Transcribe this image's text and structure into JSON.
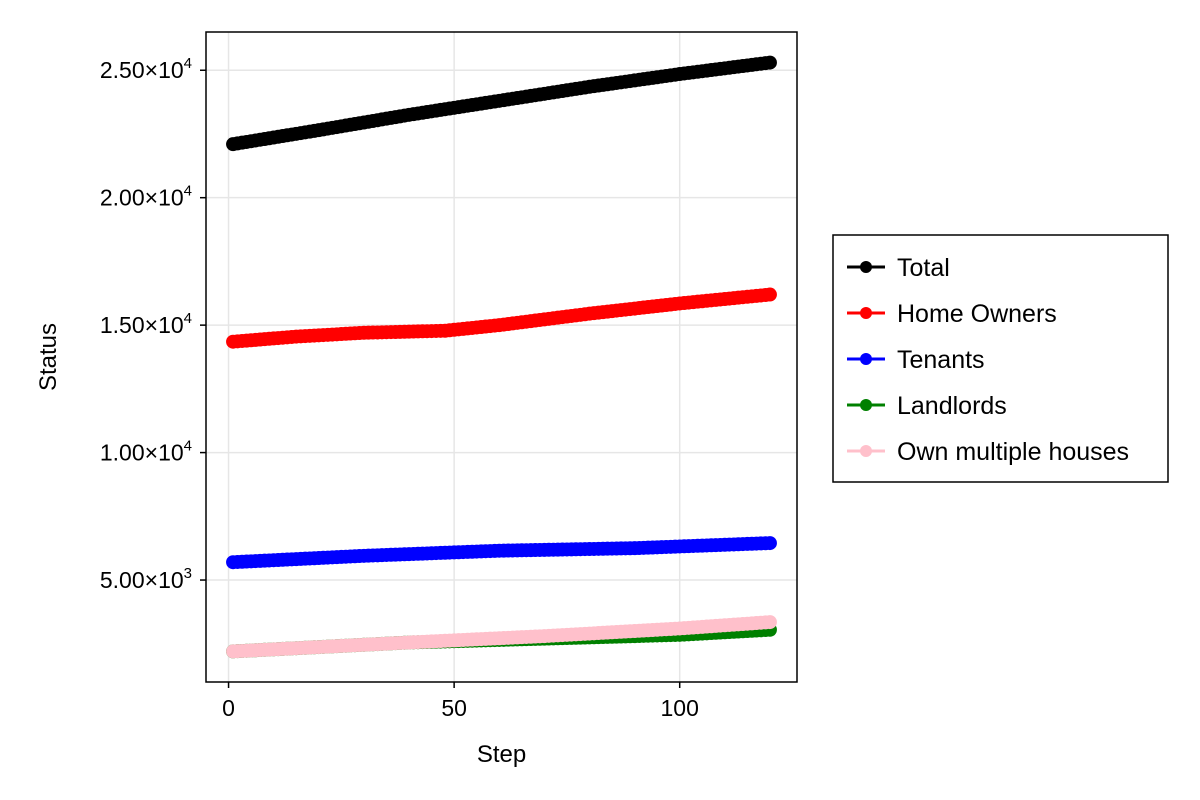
{
  "chart_data": {
    "type": "scatter",
    "xlabel": "Step",
    "ylabel": "Status",
    "xlim": [
      -5,
      126
    ],
    "ylim": [
      1000,
      26500
    ],
    "x_ticks": [
      0,
      50,
      100
    ],
    "x_tick_labels": [
      "0",
      "50",
      "100"
    ],
    "y_ticks": [
      5000,
      10000,
      15000,
      20000,
      25000
    ],
    "y_tick_labels": [
      {
        "mantissa": "5.00×10",
        "exp": "3"
      },
      {
        "mantissa": "1.00×10",
        "exp": "4"
      },
      {
        "mantissa": "1.50×10",
        "exp": "4"
      },
      {
        "mantissa": "2.00×10",
        "exp": "4"
      },
      {
        "mantissa": "2.50×10",
        "exp": "4"
      }
    ],
    "grid": true,
    "legend_position": "right",
    "x_range": {
      "start": 1,
      "end": 120
    },
    "series": [
      {
        "name": "Total",
        "color": "#000000",
        "anchors": [
          [
            1,
            22100
          ],
          [
            20,
            22650
          ],
          [
            40,
            23250
          ],
          [
            60,
            23800
          ],
          [
            80,
            24350
          ],
          [
            100,
            24850
          ],
          [
            120,
            25300
          ]
        ]
      },
      {
        "name": "Home Owners",
        "color": "#ff0000",
        "anchors": [
          [
            1,
            14350
          ],
          [
            15,
            14550
          ],
          [
            30,
            14700
          ],
          [
            48,
            14780
          ],
          [
            60,
            15000
          ],
          [
            80,
            15450
          ],
          [
            100,
            15850
          ],
          [
            120,
            16200
          ]
        ]
      },
      {
        "name": "Tenants",
        "color": "#0000ff",
        "anchors": [
          [
            1,
            5700
          ],
          [
            30,
            5950
          ],
          [
            60,
            6150
          ],
          [
            90,
            6250
          ],
          [
            120,
            6450
          ]
        ]
      },
      {
        "name": "Landlords",
        "color": "#008000",
        "anchors": [
          [
            1,
            2200
          ],
          [
            40,
            2550
          ],
          [
            70,
            2700
          ],
          [
            80,
            2750
          ],
          [
            100,
            2850
          ],
          [
            120,
            3050
          ]
        ]
      },
      {
        "name": "Own multiple houses",
        "color": "#ffc0cb",
        "anchors": [
          [
            1,
            2200
          ],
          [
            40,
            2550
          ],
          [
            70,
            2800
          ],
          [
            100,
            3100
          ],
          [
            120,
            3350
          ]
        ]
      }
    ]
  }
}
